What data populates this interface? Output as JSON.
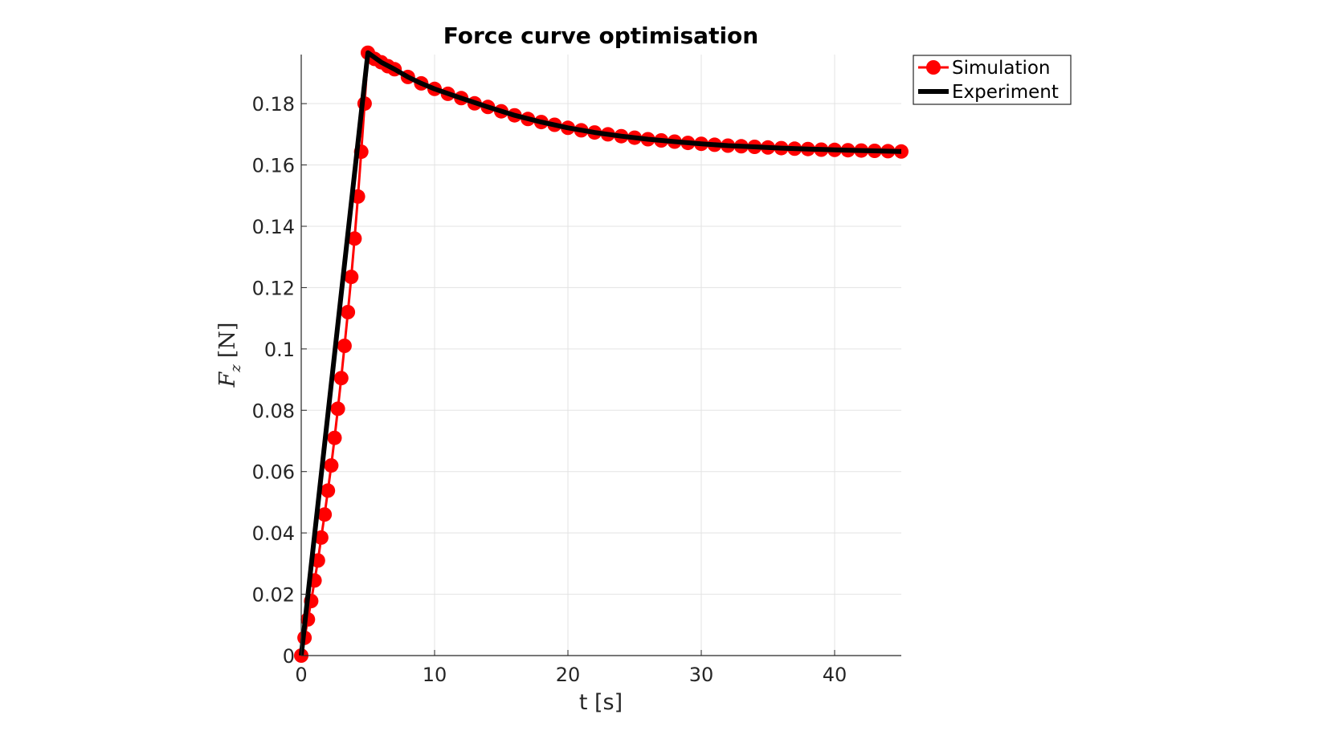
{
  "chart_data": {
    "type": "line",
    "title": "Force curve optimisation",
    "xlabel": "t [s]",
    "ylabel": "F_z [N]",
    "ylabel_main": "F",
    "ylabel_sub": "z",
    "ylabel_unit": "[N]",
    "xlim": [
      0,
      45
    ],
    "ylim": [
      0,
      0.196
    ],
    "grid": true,
    "legend_position": "top-right, outside",
    "x_ticks": [
      0,
      10,
      20,
      30,
      40
    ],
    "x_tick_labels": [
      "0",
      "10",
      "20",
      "30",
      "40"
    ],
    "y_ticks": [
      0,
      0.02,
      0.04,
      0.06,
      0.08,
      0.1,
      0.12,
      0.14,
      0.16,
      0.18
    ],
    "y_tick_labels": [
      "0",
      "0.02",
      "0.04",
      "0.06",
      "0.08",
      "0.1",
      "0.12",
      "0.14",
      "0.16",
      "0.18"
    ],
    "series": [
      {
        "name": "Simulation",
        "color": "#ff0000",
        "marker": "circle",
        "x": [
          0,
          0.25,
          0.5,
          0.75,
          1.0,
          1.25,
          1.5,
          1.75,
          2.0,
          2.25,
          2.5,
          2.75,
          3.0,
          3.25,
          3.5,
          3.75,
          4.0,
          4.25,
          4.5,
          4.75,
          5.0,
          5.5,
          6.0,
          6.5,
          7.0,
          8.0,
          9.0,
          10.0,
          11.0,
          12.0,
          13.0,
          14.0,
          15.0,
          16.0,
          17.0,
          18.0,
          19.0,
          20.0,
          21.0,
          22.0,
          23.0,
          24.0,
          25.0,
          26.0,
          27.0,
          28.0,
          29.0,
          30.0,
          31.0,
          32.0,
          33.0,
          34.0,
          35.0,
          36.0,
          37.0,
          38.0,
          39.0,
          40.0,
          41.0,
          42.0,
          43.0,
          44.0,
          45.0
        ],
        "y": [
          0,
          0.0058,
          0.0118,
          0.0178,
          0.0245,
          0.031,
          0.0385,
          0.046,
          0.0538,
          0.062,
          0.071,
          0.0805,
          0.0905,
          0.101,
          0.112,
          0.1235,
          0.136,
          0.1497,
          0.1643,
          0.18,
          0.1966,
          0.1946,
          0.1935,
          0.1922,
          0.1912,
          0.1887,
          0.1866,
          0.1848,
          0.1832,
          0.1818,
          0.1801,
          0.1789,
          0.1775,
          0.1762,
          0.175,
          0.174,
          0.1731,
          0.1721,
          0.1713,
          0.1706,
          0.17,
          0.1694,
          0.1689,
          0.1684,
          0.168,
          0.1676,
          0.1672,
          0.1669,
          0.1666,
          0.1663,
          0.1661,
          0.1659,
          0.1657,
          0.1655,
          0.1653,
          0.1652,
          0.165,
          0.1649,
          0.1648,
          0.1647,
          0.1646,
          0.1645,
          0.1644
        ]
      },
      {
        "name": "Experiment",
        "color": "#000000",
        "marker": "none",
        "x": [
          0,
          5.0,
          6.0,
          7.0,
          8.0,
          9.0,
          10.0,
          12.0,
          14.0,
          16.0,
          18.0,
          20.0,
          22.0,
          24.0,
          26.0,
          28.0,
          30.0,
          32.0,
          34.0,
          36.0,
          38.0,
          40.0,
          42.0,
          44.0,
          45.0
        ],
        "y": [
          0,
          0.1966,
          0.1935,
          0.1912,
          0.1887,
          0.1866,
          0.1848,
          0.1818,
          0.1789,
          0.1762,
          0.174,
          0.1721,
          0.1706,
          0.1694,
          0.1684,
          0.1676,
          0.1669,
          0.1663,
          0.1659,
          0.1655,
          0.1652,
          0.1649,
          0.1647,
          0.1645,
          0.1644
        ]
      }
    ]
  }
}
